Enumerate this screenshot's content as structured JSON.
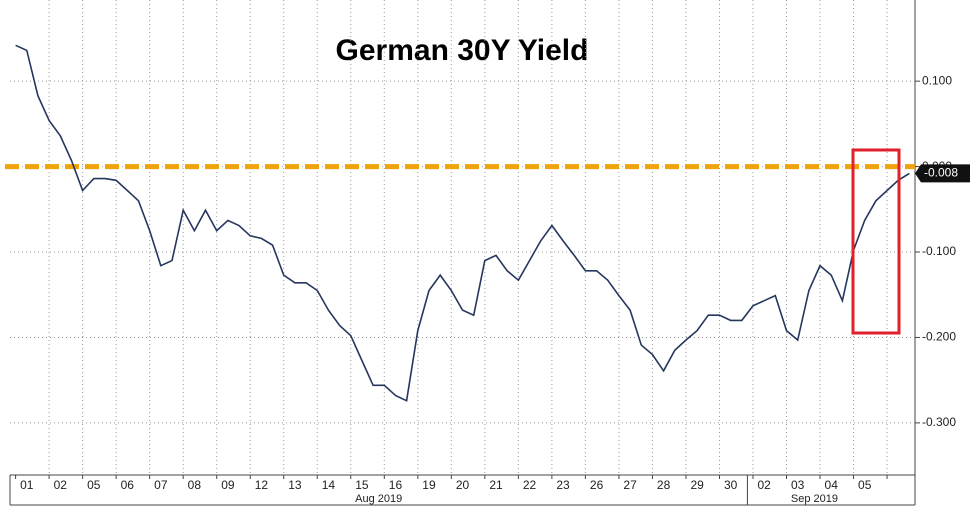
{
  "chart_data": {
    "type": "line",
    "title": "German 30Y Yield",
    "categories": [
      null,
      "01",
      null,
      null,
      "02",
      null,
      null,
      "05",
      null,
      null,
      "06",
      null,
      null,
      "07",
      null,
      null,
      "08",
      null,
      null,
      "09",
      null,
      null,
      "12",
      null,
      null,
      "13",
      null,
      null,
      "14",
      null,
      null,
      "15",
      null,
      null,
      "16",
      null,
      null,
      "19",
      null,
      null,
      "20",
      null,
      null,
      "21",
      null,
      null,
      "22",
      null,
      null,
      "23",
      null,
      null,
      "26",
      null,
      null,
      "27",
      null,
      null,
      "28",
      null,
      null,
      "29",
      null,
      null,
      "30",
      null,
      null,
      "02",
      null,
      null,
      "03",
      null,
      null,
      "04",
      null,
      null,
      "05",
      null,
      null,
      null,
      null
    ],
    "month_labels": [
      "Aug 2019",
      "Sep 2019"
    ],
    "series": [
      {
        "name": "German 30Y Yield",
        "color": "#26365e",
        "values": [
          0.142,
          0.136,
          0.083,
          0.054,
          0.036,
          0.007,
          -0.028,
          -0.014,
          -0.014,
          -0.016,
          -0.028,
          -0.04,
          -0.075,
          -0.116,
          -0.11,
          -0.051,
          -0.075,
          -0.051,
          -0.075,
          -0.063,
          -0.069,
          -0.081,
          -0.084,
          -0.092,
          -0.127,
          -0.136,
          -0.136,
          -0.145,
          -0.168,
          -0.186,
          -0.198,
          -0.227,
          -0.256,
          -0.256,
          -0.268,
          -0.274,
          -0.192,
          -0.145,
          -0.127,
          -0.145,
          -0.168,
          -0.174,
          -0.11,
          -0.104,
          -0.122,
          -0.133,
          -0.11,
          -0.087,
          -0.069,
          -0.087,
          -0.104,
          -0.122,
          -0.122,
          -0.133,
          -0.151,
          -0.168,
          -0.209,
          -0.22,
          -0.239,
          -0.215,
          -0.203,
          -0.192,
          -0.174,
          -0.174,
          -0.18,
          -0.18,
          -0.163,
          -0.157,
          -0.151,
          -0.192,
          -0.203,
          -0.145,
          -0.116,
          -0.127,
          -0.157,
          -0.098,
          -0.063,
          -0.04,
          -0.028,
          -0.016,
          -0.008
        ]
      }
    ],
    "ylim": [
      -0.361,
      0.195
    ],
    "yticks": [
      {
        "value": 0.1,
        "label": "0.100"
      },
      {
        "value": 0,
        "label": "0.000"
      },
      {
        "value": -0.1,
        "label": "-0.100"
      },
      {
        "value": -0.2,
        "label": "-0.200"
      },
      {
        "value": -0.3,
        "label": "-0.300"
      }
    ],
    "hline": 0,
    "hline_color": "#f0a30a",
    "last_value_label": {
      "value": -0.008,
      "label": "-0.008"
    },
    "grid": true
  }
}
